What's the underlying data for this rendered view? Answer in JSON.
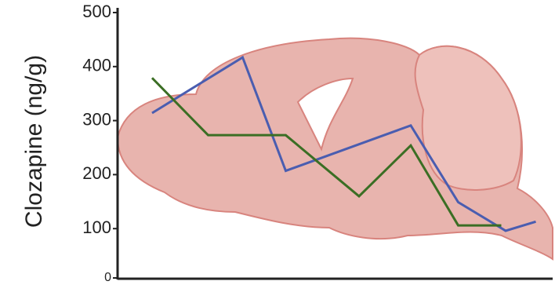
{
  "chart_data": {
    "type": "line",
    "ylabel": "Clozapine (ng/g)",
    "xlim": [
      0,
      100
    ],
    "ylim": [
      0,
      500
    ],
    "yticks": [
      0,
      100,
      200,
      300,
      400,
      500
    ],
    "series": [
      {
        "color": "#4a5db0",
        "x": [
          8,
          29,
          39,
          68,
          79,
          90,
          97
        ],
        "values": [
          314,
          417,
          207,
          291,
          149,
          96,
          113
        ]
      },
      {
        "color": "#3b6e24",
        "x": [
          8,
          21,
          39,
          56,
          68,
          79,
          89
        ],
        "values": [
          379,
          273,
          273,
          160,
          254,
          106,
          106
        ]
      }
    ]
  }
}
